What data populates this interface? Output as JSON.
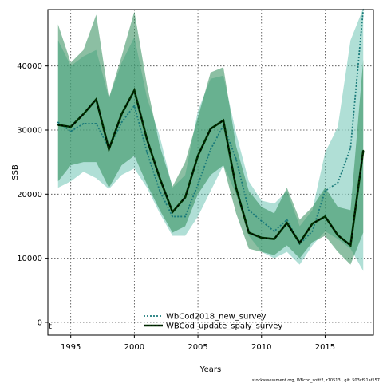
{
  "chart_data": {
    "type": "line",
    "xlabel": "Years",
    "ylabel": "SSB",
    "xlim": [
      1993.2,
      2018.8
    ],
    "ylim": [
      -2000,
      48800
    ],
    "x_ticks": [
      1995,
      2000,
      2005,
      2010,
      2015
    ],
    "y_ticks": [
      0,
      10000,
      20000,
      30000,
      40000
    ],
    "grid": true,
    "legend_position": "bottom-center",
    "annotation": "t",
    "footer": "stockassessment.org, WBcod_sofit2, r10513 , git: 503cf91af157",
    "x": [
      1994,
      1995,
      1996,
      1997,
      1998,
      1999,
      2000,
      2001,
      2002,
      2003,
      2004,
      2005,
      2006,
      2007,
      2008,
      2009,
      2010,
      2011,
      2012,
      2013,
      2014,
      2015,
      2016,
      2017,
      2018
    ],
    "series": [
      {
        "name": "WbCod2018_new_survey",
        "line_color": "#1a7a7a",
        "band_color": "#6fc4b4",
        "values": [
          31200,
          29800,
          31000,
          31000,
          27200,
          31200,
          33800,
          26500,
          20500,
          16500,
          16500,
          21500,
          27000,
          30700,
          25500,
          17500,
          15800,
          14200,
          16000,
          12200,
          14200,
          20500,
          21800,
          27200,
          48800
        ],
        "lower": [
          21000,
          22000,
          23500,
          22500,
          20800,
          23000,
          24000,
          21000,
          17000,
          13500,
          13500,
          16500,
          20500,
          24500,
          20000,
          13500,
          11000,
          10000,
          11000,
          9000,
          12000,
          14200,
          13000,
          11500,
          8000
        ],
        "upper": [
          44000,
          40000,
          41500,
          42500,
          35000,
          40500,
          44500,
          35000,
          29000,
          21000,
          23000,
          33000,
          38000,
          38500,
          29500,
          22000,
          19000,
          18500,
          20500,
          15000,
          17500,
          26500,
          30500,
          44000,
          49000
        ]
      },
      {
        "name": "WBCod_update_spaly_survey",
        "line_color": "#003300",
        "band_color": "#2e8b57",
        "values": [
          30800,
          30500,
          32500,
          34800,
          27000,
          32500,
          36200,
          28500,
          22500,
          17200,
          19500,
          26000,
          30200,
          31500,
          21000,
          14000,
          13200,
          13000,
          15500,
          12400,
          15400,
          16500,
          13600,
          12000,
          26800
        ],
        "lower": [
          22000,
          24500,
          25000,
          25000,
          21000,
          24500,
          26000,
          21500,
          17500,
          14000,
          15000,
          20000,
          23000,
          24500,
          17000,
          11500,
          11000,
          10500,
          12000,
          10000,
          12500,
          13500,
          11000,
          9000,
          14000
        ],
        "upper": [
          46500,
          40500,
          42500,
          48000,
          35000,
          41500,
          48500,
          37000,
          27500,
          21200,
          25000,
          32000,
          39000,
          39800,
          27500,
          20500,
          18000,
          17000,
          21000,
          16000,
          18000,
          21000,
          18000,
          17500,
          41000
        ]
      }
    ]
  }
}
